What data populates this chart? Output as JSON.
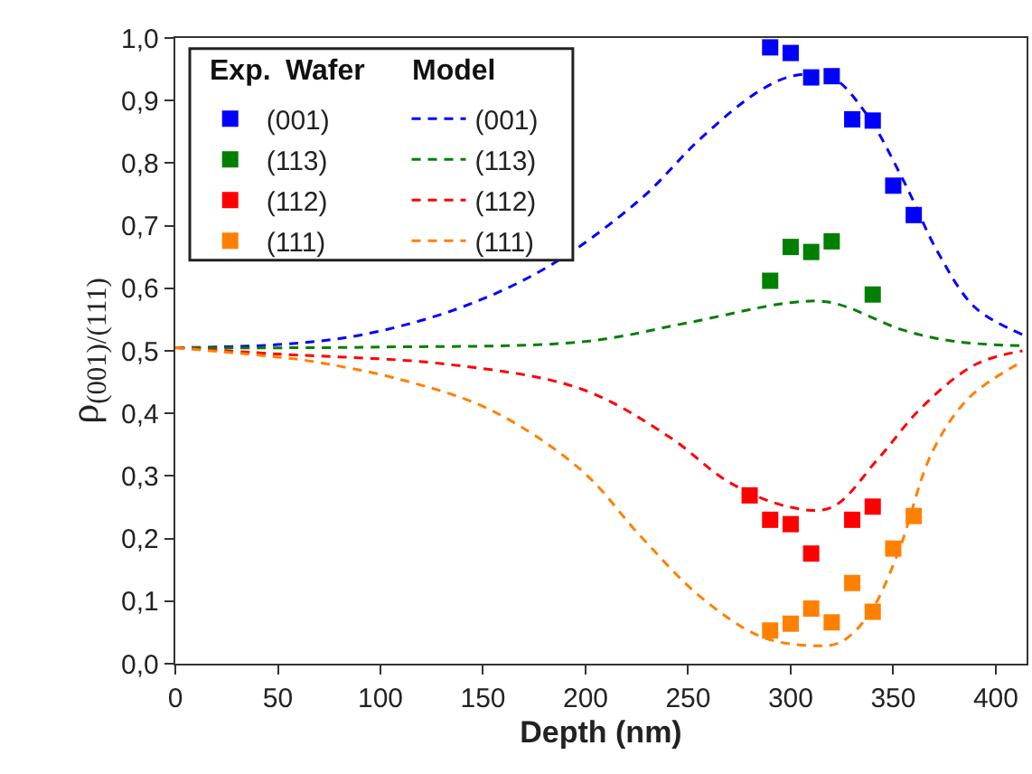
{
  "chart_data": {
    "type": "scatter",
    "xlabel": "Depth (nm)",
    "ylabel": "ρ$_{(001)/(111)}$",
    "legend_title": "Wafer",
    "annotations": [
      "Exp.",
      "Model"
    ],
    "xlim": [
      0,
      415
    ],
    "xticks": [
      0,
      50,
      100,
      150,
      200,
      250,
      300,
      350,
      400
    ],
    "ylim": [
      0,
      1
    ],
    "yticks": [
      {
        "value": 0,
        "label": "0,0"
      },
      {
        "value": 0.1,
        "label": "0,1"
      },
      {
        "value": 0.2,
        "label": "0,2"
      },
      {
        "value": 0.3,
        "label": "0,3"
      },
      {
        "value": 0.4,
        "label": "0,4"
      },
      {
        "value": 0.5,
        "label": "0,5"
      },
      {
        "value": 0.6,
        "label": "0,6"
      },
      {
        "value": 0.7,
        "label": "0,7"
      },
      {
        "value": 0.8,
        "label": "0,8"
      },
      {
        "value": 0.9,
        "label": "0,9"
      },
      {
        "value": 1,
        "label": "1,0"
      }
    ],
    "legend": "top left",
    "series": [
      {
        "name": "(001)",
        "color": "#0000ff",
        "marker": "square",
        "x": [
          290,
          300,
          310,
          320,
          330,
          340,
          350,
          360
        ],
        "values": [
          0.985,
          0.976,
          0.937,
          0.939,
          0.87,
          0.868,
          0.764,
          0.717
        ]
      },
      {
        "name": "(113)",
        "color": "#008000",
        "marker": "square",
        "x": [
          290,
          300,
          310,
          320,
          340
        ],
        "values": [
          0.612,
          0.666,
          0.658,
          0.675,
          0.59
        ]
      },
      {
        "name": "(112)",
        "color": "#ff0000",
        "marker": "square",
        "x": [
          280,
          290,
          300,
          310,
          330,
          340
        ],
        "values": [
          0.269,
          0.23,
          0.223,
          0.176,
          0.23,
          0.251
        ]
      },
      {
        "name": "(111)",
        "color": "#ff8000",
        "marker": "square",
        "x": [
          290,
          300,
          310,
          320,
          330,
          340,
          350,
          360
        ],
        "values": [
          0.053,
          0.064,
          0.088,
          0.066,
          0.129,
          0.083,
          0.184,
          0.236
        ]
      },
      {
        "name": "(001)",
        "color": "#0000ff",
        "type": "line",
        "line_style": "dashed",
        "x": [
          0,
          50,
          90,
          139,
          183,
          227,
          256,
          285,
          302,
          320,
          337,
          355,
          372,
          390,
          413
        ],
        "values": [
          0.505,
          0.51,
          0.525,
          0.569,
          0.637,
          0.743,
          0.839,
          0.916,
          0.94,
          0.937,
          0.878,
          0.772,
          0.656,
          0.569,
          0.526
        ]
      },
      {
        "name": "(113)",
        "color": "#008000",
        "type": "line",
        "line_style": "dashed",
        "x": [
          0,
          100,
          200,
          250,
          300,
          320,
          355,
          380,
          413
        ],
        "values": [
          0.505,
          0.506,
          0.515,
          0.545,
          0.577,
          0.577,
          0.533,
          0.515,
          0.508
        ]
      },
      {
        "name": "(112)",
        "color": "#ff0000",
        "type": "line",
        "line_style": "dashed",
        "x": [
          0,
          50,
          134,
          198,
          241,
          270,
          300,
          320,
          343,
          364,
          390,
          413
        ],
        "values": [
          0.505,
          0.495,
          0.478,
          0.439,
          0.362,
          0.29,
          0.25,
          0.25,
          0.329,
          0.41,
          0.478,
          0.5
        ]
      },
      {
        "name": "(111)",
        "color": "#ff8000",
        "type": "line",
        "line_style": "dashed",
        "x": [
          0,
          50,
          67,
          110,
          154,
          198,
          227,
          256,
          285,
          309,
          324,
          338,
          352,
          369,
          387,
          413
        ],
        "values": [
          0.505,
          0.49,
          0.483,
          0.454,
          0.405,
          0.309,
          0.203,
          0.107,
          0.044,
          0.029,
          0.034,
          0.078,
          0.174,
          0.338,
          0.425,
          0.483
        ]
      }
    ]
  }
}
